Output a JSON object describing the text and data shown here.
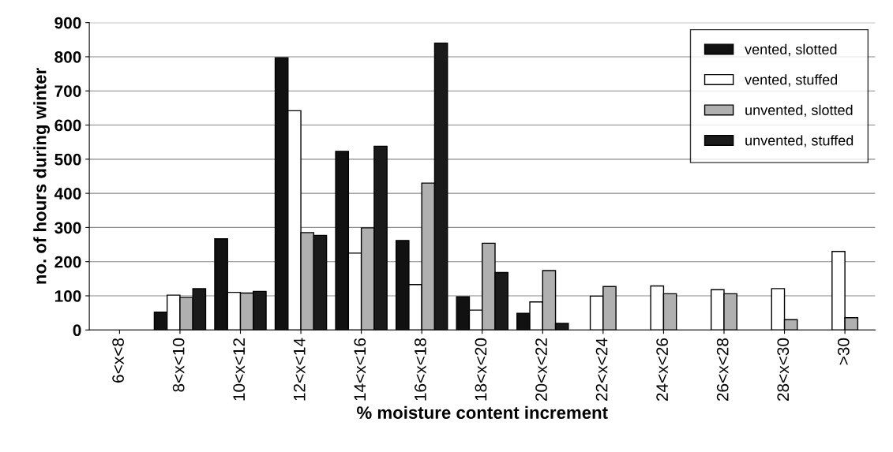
{
  "chart_data": {
    "type": "bar",
    "xlabel": "% moisture content increment",
    "ylabel": "no. of hours during winter",
    "categories": [
      "6<x<8",
      "8<x<10",
      "10<x<12",
      "12<x<14",
      "14<x<16",
      "16<x<18",
      "18<x<20",
      "20<x<22",
      "22<x<24",
      "24<x<26",
      "26<x<28",
      "28<x<30",
      ">30"
    ],
    "series": [
      {
        "name": "vented, slotted",
        "color": "#111111",
        "values": [
          0,
          52,
          267,
          797,
          523,
          262,
          97,
          49,
          0,
          0,
          0,
          0,
          0
        ]
      },
      {
        "name": "vented, stuffed",
        "color": "#ffffff",
        "values": [
          0,
          102,
          110,
          642,
          225,
          133,
          58,
          82,
          99,
          129,
          118,
          121,
          230
        ]
      },
      {
        "name": "unvented, slotted",
        "color": "#b0b0b0",
        "values": [
          0,
          95,
          108,
          285,
          299,
          430,
          254,
          174,
          127,
          106,
          106,
          30,
          36
        ]
      },
      {
        "name": "unvented, stuffed",
        "color": "#1a1a1a",
        "values": [
          0,
          121,
          113,
          277,
          538,
          840,
          168,
          19,
          0,
          0,
          0,
          0,
          0
        ]
      }
    ],
    "ylim": [
      0,
      900
    ],
    "yticks": [
      0,
      100,
      200,
      300,
      400,
      500,
      600,
      700,
      800,
      900
    ],
    "grid": "y",
    "legend": "top right"
  }
}
